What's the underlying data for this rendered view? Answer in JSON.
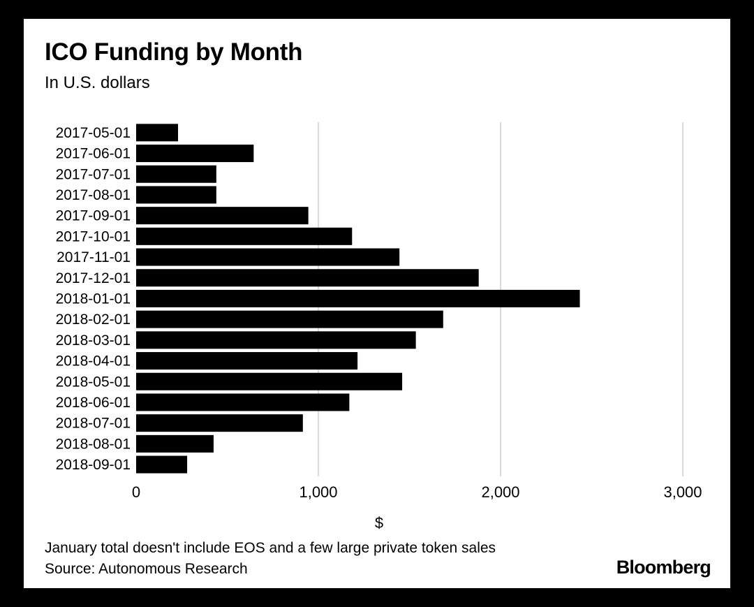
{
  "header": {
    "title": "ICO Funding by Month",
    "subtitle": "In U.S. dollars"
  },
  "footer": {
    "note": "January total doesn't include EOS and a few large private token sales",
    "source": "Source: Autonomous Research",
    "brand": "Bloomberg"
  },
  "colors": {
    "bar": "#000000",
    "grid": "#d9d9d9",
    "background": "#ffffff",
    "frame": "#000000"
  },
  "chart_data": {
    "type": "bar",
    "orientation": "horizontal",
    "title": "ICO Funding by Month",
    "subtitle": "In U.S. dollars",
    "xlabel": "$",
    "ylabel": "",
    "xlim": [
      0,
      3000
    ],
    "xticks": [
      0,
      1000,
      2000,
      3000
    ],
    "xtick_labels": [
      "0",
      "1,000",
      "2,000",
      "3,000"
    ],
    "grid": true,
    "categories": [
      "2017-05-01",
      "2017-06-01",
      "2017-07-01",
      "2017-08-01",
      "2017-09-01",
      "2017-10-01",
      "2017-11-01",
      "2017-12-01",
      "2018-01-01",
      "2018-02-01",
      "2018-03-01",
      "2018-04-01",
      "2018-05-01",
      "2018-06-01",
      "2018-07-01",
      "2018-08-01",
      "2018-09-01"
    ],
    "values": [
      230,
      645,
      440,
      440,
      945,
      1185,
      1445,
      1880,
      2435,
      1685,
      1535,
      1215,
      1460,
      1170,
      915,
      425,
      280
    ]
  }
}
